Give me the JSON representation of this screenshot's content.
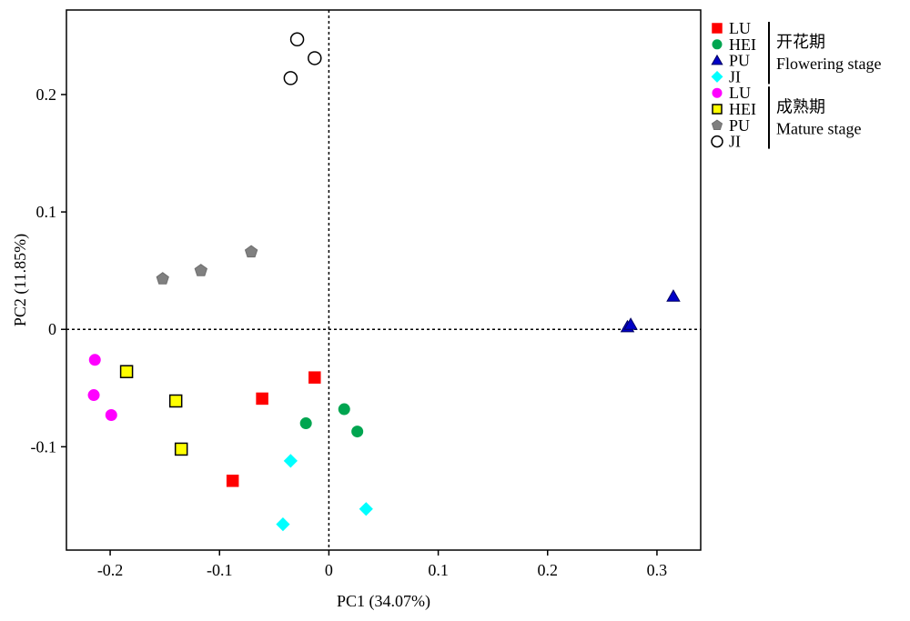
{
  "chart_data": {
    "type": "scatter",
    "xlabel": "PC1 (34.07%)",
    "ylabel": "PC2 (11.85%)",
    "xlim": [
      -0.24,
      0.34
    ],
    "ylim": [
      -0.188,
      0.272
    ],
    "x_ticks": [
      -0.2,
      -0.1,
      0,
      0.1,
      0.2,
      0.3
    ],
    "x_tick_labels": [
      "-0.2",
      "-0.1",
      "0",
      "0.1",
      "0.2",
      "0.3"
    ],
    "y_ticks": [
      -0.1,
      0,
      0.1,
      0.2
    ],
    "y_tick_labels": [
      "-0.1",
      "0",
      "0.1",
      "0.2"
    ],
    "reference_lines": {
      "x": 0,
      "y": 0,
      "style": "dotted"
    },
    "grid": false,
    "legend_position": "right",
    "legend_groups": [
      {
        "cn_label": "开花期",
        "en_label": "Flowering stage",
        "series_indices": [
          0,
          1,
          2,
          3
        ]
      },
      {
        "cn_label": "成熟期",
        "en_label": "Mature stage",
        "series_indices": [
          4,
          5,
          6,
          7
        ]
      }
    ],
    "series": [
      {
        "name": "LU",
        "marker": "square",
        "color": "#ff0000",
        "edge": "#ff0000",
        "points": [
          {
            "x": -0.088,
            "y": -0.129
          },
          {
            "x": -0.061,
            "y": -0.059
          },
          {
            "x": -0.013,
            "y": -0.041
          }
        ]
      },
      {
        "name": "HEI",
        "marker": "circle",
        "color": "#00a550",
        "edge": "#00a550",
        "points": [
          {
            "x": -0.021,
            "y": -0.08
          },
          {
            "x": 0.014,
            "y": -0.068
          },
          {
            "x": 0.026,
            "y": -0.087
          }
        ]
      },
      {
        "name": "PU",
        "marker": "triangle",
        "color": "#0000c8",
        "edge": "#000060",
        "points": [
          {
            "x": 0.273,
            "y": 0.002
          },
          {
            "x": 0.276,
            "y": 0.004
          },
          {
            "x": 0.315,
            "y": 0.028
          }
        ]
      },
      {
        "name": "JI",
        "marker": "diamond",
        "color": "#00ffff",
        "edge": "#00ffff",
        "points": [
          {
            "x": -0.035,
            "y": -0.112
          },
          {
            "x": 0.034,
            "y": -0.153
          },
          {
            "x": -0.042,
            "y": -0.166
          }
        ]
      },
      {
        "name": "LU",
        "marker": "circle",
        "color": "#ff00ff",
        "edge": "#ff00ff",
        "points": [
          {
            "x": -0.214,
            "y": -0.026
          },
          {
            "x": -0.215,
            "y": -0.056
          },
          {
            "x": -0.199,
            "y": -0.073
          }
        ]
      },
      {
        "name": "HEI",
        "marker": "square",
        "color": "#ffff00",
        "edge": "#000000",
        "points": [
          {
            "x": -0.185,
            "y": -0.036
          },
          {
            "x": -0.14,
            "y": -0.061
          },
          {
            "x": -0.135,
            "y": -0.102
          }
        ]
      },
      {
        "name": "PU",
        "marker": "pentagon",
        "color": "#808080",
        "edge": "#6e6e6e",
        "points": [
          {
            "x": -0.152,
            "y": 0.043
          },
          {
            "x": -0.117,
            "y": 0.05
          },
          {
            "x": -0.071,
            "y": 0.066
          }
        ]
      },
      {
        "name": "JI",
        "marker": "circle-open",
        "color": "#ffffff",
        "edge": "#000000",
        "points": [
          {
            "x": -0.029,
            "y": 0.247
          },
          {
            "x": -0.013,
            "y": 0.231
          },
          {
            "x": -0.035,
            "y": 0.214
          }
        ]
      }
    ]
  }
}
